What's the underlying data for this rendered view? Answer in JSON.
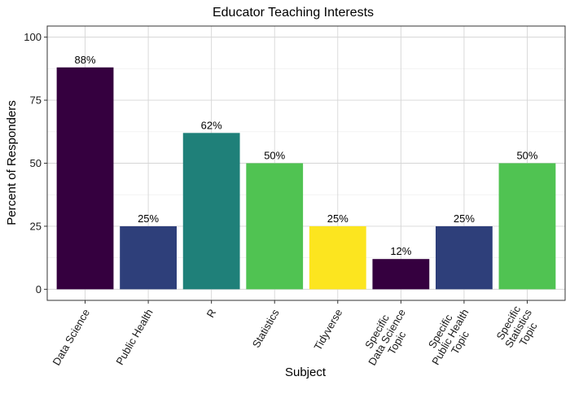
{
  "chart_data": {
    "type": "bar",
    "title": "Educator Teaching Interests",
    "xlabel": "Subject",
    "ylabel": "Percent of Responders",
    "ylim": [
      -4.4,
      104.4
    ],
    "yticks": [
      0,
      25,
      50,
      75,
      100
    ],
    "grid": true,
    "legend": "none",
    "categories": [
      [
        "Data Science"
      ],
      [
        "Public Health"
      ],
      [
        "R"
      ],
      [
        "Statistics"
      ],
      [
        "Tidyverse"
      ],
      [
        "Specific",
        "Data Science",
        "Topic"
      ],
      [
        "Specific",
        "Public Health",
        "Topic"
      ],
      [
        "Specific",
        "Statistics",
        "Topic"
      ]
    ],
    "values": [
      88,
      25,
      62,
      50,
      25,
      12,
      25,
      50
    ],
    "data_labels": [
      "88%",
      "25%",
      "62%",
      "50%",
      "25%",
      "12%",
      "25%",
      "50%"
    ],
    "colors": [
      "#35003f",
      "#2e3f7a",
      "#1f8079",
      "#50c352",
      "#fce51f",
      "#35003f",
      "#2e3f7a",
      "#50c352"
    ]
  }
}
